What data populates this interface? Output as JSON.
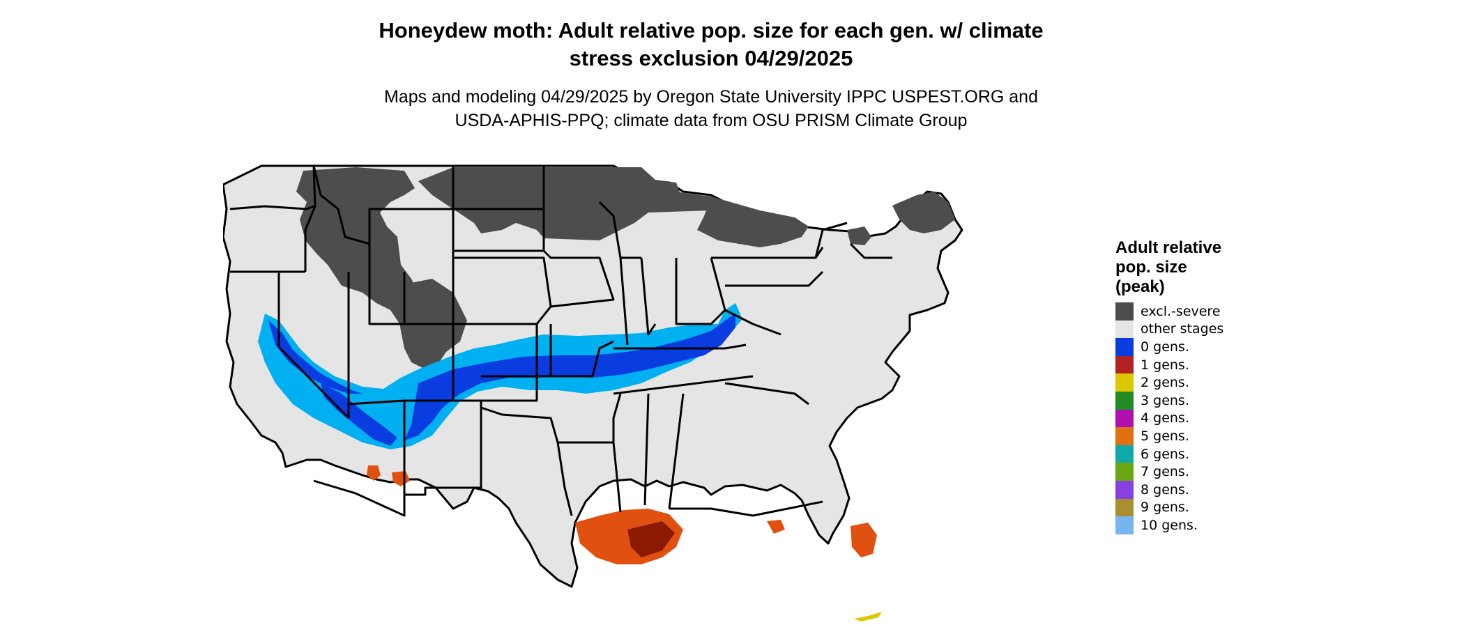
{
  "title": {
    "line1": "Honeydew moth: Adult relative pop. size for each gen. w/ climate",
    "line2": "stress exclusion 04/29/2025"
  },
  "subtitle": {
    "line1": "Maps and modeling 04/29/2025 by Oregon State University IPPC USPEST.ORG and",
    "line2": "USDA-APHIS-PPQ; climate data from OSU PRISM Climate Group"
  },
  "map": {
    "region": "conterminous-united-states",
    "colors": {
      "land": "#e5e5e5",
      "borders": "#000000",
      "excl_severe": "#4d4d4d",
      "gen0": "#0a3de0",
      "gen0_light": "#00b0f0",
      "gen5": "#e05010"
    }
  },
  "legend": {
    "title_line1": "Adult relative",
    "title_line2": "pop. size",
    "title_line3": "(peak)",
    "items": [
      {
        "label": "excl.-severe",
        "color": "#4d4d4d"
      },
      {
        "label": "other stages",
        "color": "#e5e5e5"
      },
      {
        "label": "0 gens.",
        "color": "#0a3de0"
      },
      {
        "label": "1 gens.",
        "color": "#b22222"
      },
      {
        "label": "2 gens.",
        "color": "#dcc800"
      },
      {
        "label": "3 gens.",
        "color": "#228b22"
      },
      {
        "label": "4 gens.",
        "color": "#b010b0"
      },
      {
        "label": "5 gens.",
        "color": "#e07010"
      },
      {
        "label": "6 gens.",
        "color": "#10a8a8"
      },
      {
        "label": "7 gens.",
        "color": "#6aa812"
      },
      {
        "label": "8 gens.",
        "color": "#8a40e0"
      },
      {
        "label": "9 gens.",
        "color": "#a89030"
      },
      {
        "label": "10 gens.",
        "color": "#78b4f0"
      }
    ]
  }
}
